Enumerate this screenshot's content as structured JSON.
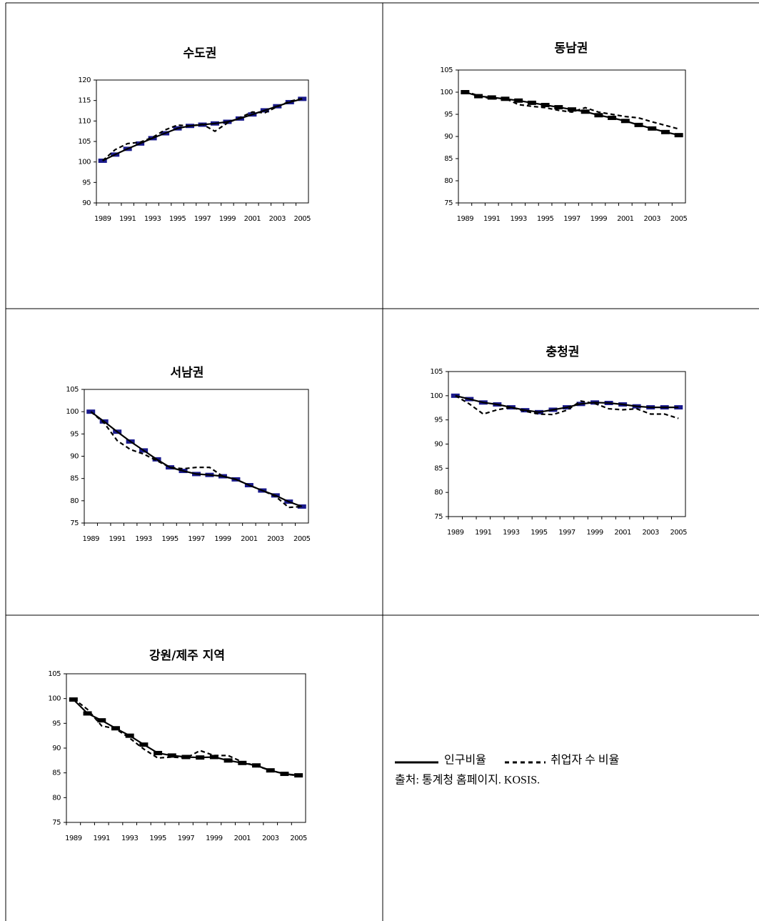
{
  "chart_data": [
    {
      "type": "line",
      "title": "수도권",
      "categories": [
        "1989",
        null,
        "1991",
        null,
        "1993",
        null,
        "1995",
        null,
        "1997",
        null,
        "1999",
        null,
        "2001",
        null,
        "2003",
        null,
        "2005"
      ],
      "series": [
        {
          "color": "#000000",
          "marker_color": "#1a1a8c",
          "values": [
            100.3,
            101.8,
            103.2,
            104.5,
            105.8,
            107,
            108.2,
            108.8,
            109.1,
            109.4,
            109.8,
            110.6,
            111.6,
            112.6,
            113.6,
            114.6,
            115.4
          ]
        },
        {
          "color": "#000000",
          "values": [
            100.3,
            103,
            104.5,
            104.8,
            106,
            107.8,
            109,
            108.8,
            109.2,
            107.5,
            109.5,
            110.8,
            112.2,
            112,
            113.5,
            114.8,
            115.5
          ]
        }
      ],
      "ylim": [
        90,
        120
      ],
      "yticks": [
        90,
        95,
        100,
        105,
        110,
        115,
        120
      ]
    },
    {
      "type": "line",
      "title": "동남권",
      "categories": [
        "1989",
        null,
        "1991",
        null,
        "1993",
        null,
        "1995",
        null,
        "1997",
        null,
        "1999",
        null,
        "2001",
        null,
        "2003",
        null,
        "2005"
      ],
      "series": [
        {
          "color": "#000000",
          "marker_color": "#000000",
          "values": [
            100,
            99.1,
            98.8,
            98.5,
            98.1,
            97.6,
            97.1,
            96.6,
            96.1,
            95.6,
            94.8,
            94.2,
            93.5,
            92.6,
            91.8,
            91,
            90.3
          ]
        },
        {
          "color": "#000000",
          "values": [
            100.2,
            99.2,
            98.5,
            98.6,
            97.2,
            96.8,
            96.5,
            95.9,
            95.5,
            96.5,
            95.5,
            95,
            94.5,
            94.2,
            93.3,
            92.5,
            91.7
          ]
        }
      ],
      "ylim": [
        75,
        105
      ],
      "yticks": [
        75,
        80,
        85,
        90,
        95,
        100,
        105
      ]
    },
    {
      "type": "line",
      "title": "서남권",
      "categories": [
        "1989",
        null,
        "1991",
        null,
        "1993",
        null,
        "1995",
        null,
        "1997",
        null,
        "1999",
        null,
        "2001",
        null,
        "2003",
        null,
        "2005"
      ],
      "series": [
        {
          "color": "#000000",
          "marker_color": "#1a1a8c",
          "values": [
            100,
            97.8,
            95.5,
            93.3,
            91.3,
            89.3,
            87.5,
            86.7,
            86,
            85.8,
            85.5,
            84.8,
            83.5,
            82.3,
            81.2,
            79.8,
            78.7
          ]
        },
        {
          "color": "#000000",
          "values": [
            100,
            97.5,
            93.5,
            91.5,
            90.5,
            89,
            87.5,
            87.2,
            87.5,
            87.5,
            85.5,
            84.8,
            83.5,
            82.3,
            81,
            78.5,
            78.7
          ]
        }
      ],
      "ylim": [
        75,
        105
      ],
      "yticks": [
        75,
        80,
        85,
        90,
        95,
        100,
        105
      ]
    },
    {
      "type": "line",
      "title": "충청권",
      "categories": [
        "1989",
        null,
        "1991",
        null,
        "1993",
        null,
        "1995",
        null,
        "1997",
        null,
        "1999",
        null,
        "2001",
        null,
        "2003",
        null,
        "2005"
      ],
      "series": [
        {
          "color": "#000000",
          "marker_color": "#1a1a8c",
          "values": [
            100,
            99.3,
            98.6,
            98.2,
            97.6,
            97,
            96.6,
            97.1,
            97.6,
            98.3,
            98.6,
            98.5,
            98.2,
            97.8,
            97.6,
            97.6,
            97.6
          ]
        },
        {
          "color": "#000000",
          "values": [
            100,
            98.3,
            96.2,
            97.1,
            97.6,
            96.8,
            96.2,
            96.1,
            97,
            98.9,
            98.4,
            97.3,
            97.1,
            97.3,
            96.2,
            96.2,
            95.3
          ]
        }
      ],
      "ylim": [
        75,
        105
      ],
      "yticks": [
        75,
        80,
        85,
        90,
        95,
        100,
        105
      ]
    },
    {
      "type": "line",
      "title": "강원/제주 지역",
      "categories": [
        "1989",
        null,
        "1991",
        null,
        "1993",
        null,
        "1995",
        null,
        "1997",
        null,
        "1999",
        null,
        "2001",
        null,
        "2003",
        null,
        "2005"
      ],
      "series": [
        {
          "color": "#000000",
          "marker_color": "#000000",
          "values": [
            99.8,
            97,
            95.6,
            94,
            92.5,
            90.7,
            89,
            88.5,
            88.2,
            88.1,
            88.2,
            87.5,
            87,
            86.5,
            85.5,
            84.8,
            84.5
          ]
        },
        {
          "color": "#000000",
          "values": [
            100,
            97.8,
            94.5,
            93.9,
            92,
            89.8,
            88,
            88.2,
            88,
            89.5,
            88.5,
            88.5,
            87.2,
            86.4,
            85.5,
            84.8,
            84.4
          ]
        }
      ],
      "ylim": [
        75,
        105
      ],
      "yticks": [
        75,
        80,
        85,
        90,
        95,
        100,
        105
      ]
    }
  ],
  "legend": {
    "labels": [
      "인구비율",
      "취업자 수 비율"
    ]
  },
  "source": "출처: 통계청 홈페이지. KOSIS."
}
